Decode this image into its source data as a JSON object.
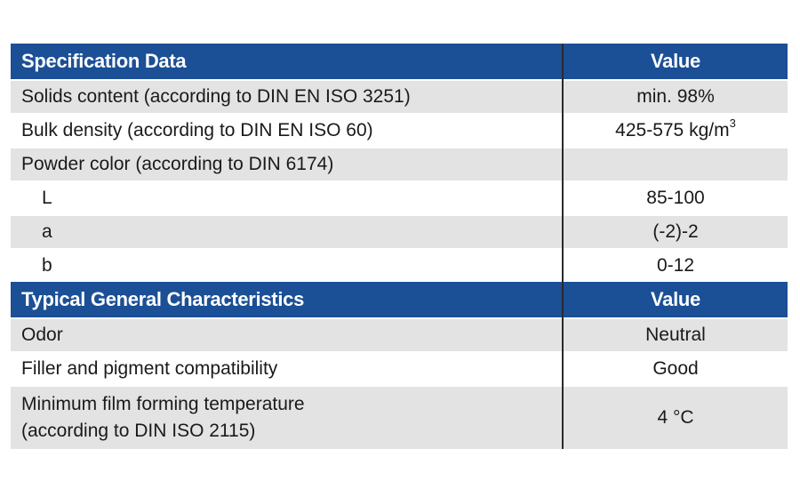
{
  "sections": [
    {
      "header": {
        "label": "Specification Data",
        "value": "Value"
      },
      "rows": [
        {
          "label": "Solids content (according to DIN EN ISO 3251)",
          "value": "min. 98%"
        },
        {
          "label": "Bulk density (according to DIN EN ISO 60)",
          "value": "425-575 kg/m",
          "value_sup": "3"
        },
        {
          "label": "Powder color (according to DIN 6174)",
          "value": ""
        },
        {
          "label": "L",
          "value": "85-100"
        },
        {
          "label": "a",
          "value": "(-2)-2"
        },
        {
          "label": "b",
          "value": "0-12"
        }
      ]
    },
    {
      "header": {
        "label": "Typical General Characteristics",
        "value": "Value"
      },
      "rows": [
        {
          "label": "Odor",
          "value": "Neutral"
        },
        {
          "label": "Filler and pigment compatibility",
          "value": "Good"
        },
        {
          "label_lines": [
            "Minimum film forming temperature",
            "(according to DIN ISO 2115)"
          ],
          "value": "4 °C"
        }
      ]
    }
  ],
  "colors": {
    "header_bg": "#1b4f96",
    "header_text": "#ffffff",
    "row_shade": "#e3e3e3",
    "row_white": "#ffffff"
  }
}
